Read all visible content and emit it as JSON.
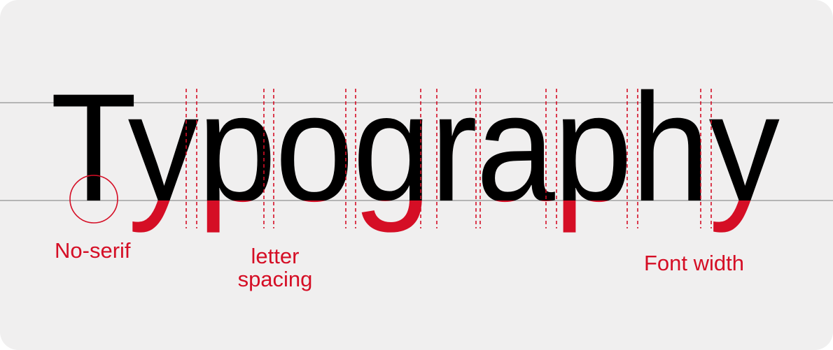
{
  "word": "Typography",
  "labels": {
    "no_serif": "No-serif",
    "letter_spacing_line1": "letter",
    "letter_spacing_line2": "spacing",
    "font_width": "Font width"
  },
  "colors": {
    "background": "#f0efef",
    "text": "#000000",
    "accent": "#d50e25",
    "guide_line": "#b5b5b5"
  }
}
